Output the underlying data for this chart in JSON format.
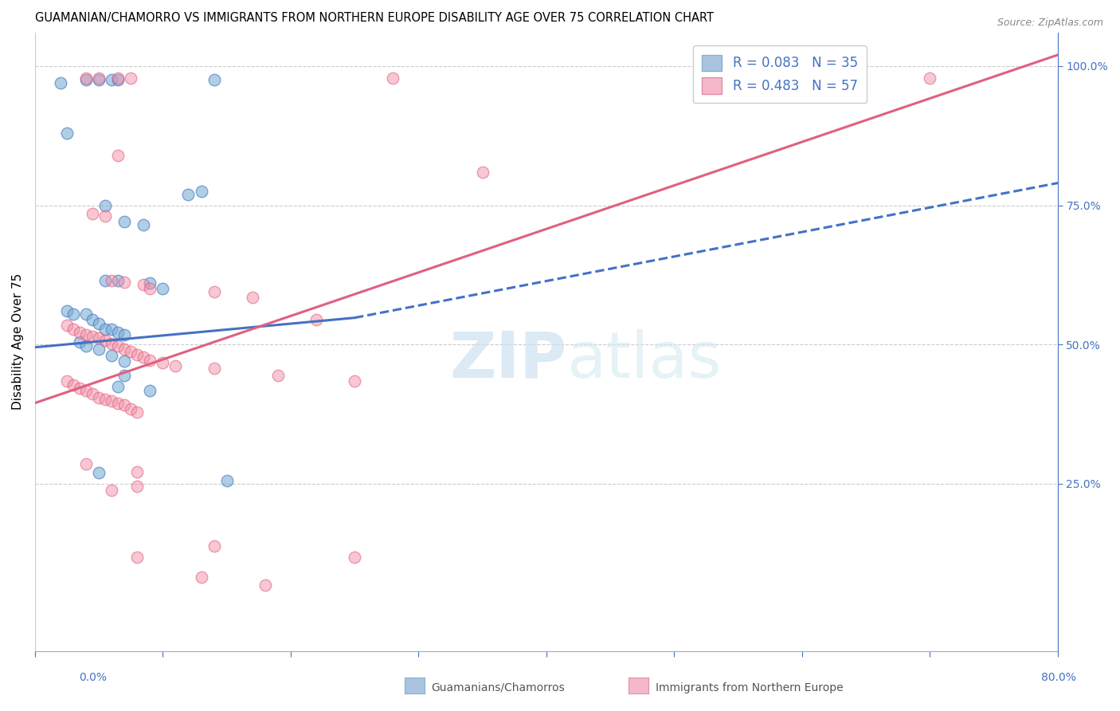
{
  "title": "GUAMANIAN/CHAMORRO VS IMMIGRANTS FROM NORTHERN EUROPE DISABILITY AGE OVER 75 CORRELATION CHART",
  "source": "Source: ZipAtlas.com",
  "ylabel": "Disability Age Over 75",
  "ytick_labels": [
    "100.0%",
    "75.0%",
    "50.0%",
    "25.0%"
  ],
  "ytick_values": [
    1.0,
    0.75,
    0.5,
    0.25
  ],
  "xlim": [
    0.0,
    0.8
  ],
  "ylim": [
    -0.05,
    1.06
  ],
  "legend_entries": [
    {
      "label": "R = 0.083   N = 35",
      "facecolor": "#aac4e0",
      "edgecolor": "#4472c4"
    },
    {
      "label": "R = 0.483   N = 57",
      "facecolor": "#f4b8c8",
      "edgecolor": "#e05080"
    }
  ],
  "legend_title_blue": "Guamanians/Chamorros",
  "legend_title_pink": "Immigrants from Northern Europe",
  "watermark_zip": "ZIP",
  "watermark_atlas": "atlas",
  "blue_scatter_color": "#7bafd4",
  "blue_scatter_edge": "#4472c4",
  "pink_scatter_color": "#f090a8",
  "pink_scatter_edge": "#e05070",
  "blue_line_color": "#4472c4",
  "pink_line_color": "#e06080",
  "grid_color": "#cccccc",
  "blue_points": [
    [
      0.02,
      0.97
    ],
    [
      0.04,
      0.975
    ],
    [
      0.05,
      0.975
    ],
    [
      0.06,
      0.975
    ],
    [
      0.065,
      0.975
    ],
    [
      0.14,
      0.975
    ],
    [
      0.025,
      0.88
    ],
    [
      0.12,
      0.77
    ],
    [
      0.13,
      0.775
    ],
    [
      0.055,
      0.75
    ],
    [
      0.07,
      0.72
    ],
    [
      0.085,
      0.715
    ],
    [
      0.055,
      0.615
    ],
    [
      0.065,
      0.615
    ],
    [
      0.09,
      0.61
    ],
    [
      0.1,
      0.6
    ],
    [
      0.025,
      0.56
    ],
    [
      0.03,
      0.555
    ],
    [
      0.04,
      0.555
    ],
    [
      0.045,
      0.545
    ],
    [
      0.05,
      0.538
    ],
    [
      0.055,
      0.528
    ],
    [
      0.06,
      0.528
    ],
    [
      0.065,
      0.522
    ],
    [
      0.07,
      0.518
    ],
    [
      0.035,
      0.505
    ],
    [
      0.04,
      0.498
    ],
    [
      0.05,
      0.492
    ],
    [
      0.06,
      0.48
    ],
    [
      0.07,
      0.47
    ],
    [
      0.07,
      0.445
    ],
    [
      0.065,
      0.425
    ],
    [
      0.09,
      0.418
    ],
    [
      0.05,
      0.27
    ],
    [
      0.15,
      0.255
    ]
  ],
  "pink_points": [
    [
      0.04,
      0.978
    ],
    [
      0.05,
      0.978
    ],
    [
      0.065,
      0.978
    ],
    [
      0.075,
      0.978
    ],
    [
      0.28,
      0.978
    ],
    [
      0.7,
      0.978
    ],
    [
      0.065,
      0.84
    ],
    [
      0.35,
      0.81
    ],
    [
      0.045,
      0.735
    ],
    [
      0.055,
      0.73
    ],
    [
      0.06,
      0.615
    ],
    [
      0.07,
      0.612
    ],
    [
      0.085,
      0.608
    ],
    [
      0.09,
      0.6
    ],
    [
      0.14,
      0.595
    ],
    [
      0.17,
      0.585
    ],
    [
      0.22,
      0.545
    ],
    [
      0.025,
      0.535
    ],
    [
      0.03,
      0.528
    ],
    [
      0.035,
      0.522
    ],
    [
      0.04,
      0.518
    ],
    [
      0.045,
      0.515
    ],
    [
      0.05,
      0.512
    ],
    [
      0.055,
      0.508
    ],
    [
      0.06,
      0.502
    ],
    [
      0.065,
      0.498
    ],
    [
      0.07,
      0.492
    ],
    [
      0.075,
      0.488
    ],
    [
      0.08,
      0.482
    ],
    [
      0.085,
      0.478
    ],
    [
      0.09,
      0.472
    ],
    [
      0.1,
      0.468
    ],
    [
      0.11,
      0.462
    ],
    [
      0.14,
      0.458
    ],
    [
      0.19,
      0.445
    ],
    [
      0.025,
      0.435
    ],
    [
      0.03,
      0.428
    ],
    [
      0.035,
      0.422
    ],
    [
      0.04,
      0.418
    ],
    [
      0.045,
      0.412
    ],
    [
      0.05,
      0.405
    ],
    [
      0.055,
      0.402
    ],
    [
      0.06,
      0.398
    ],
    [
      0.065,
      0.395
    ],
    [
      0.07,
      0.392
    ],
    [
      0.075,
      0.385
    ],
    [
      0.08,
      0.378
    ],
    [
      0.25,
      0.435
    ],
    [
      0.04,
      0.285
    ],
    [
      0.08,
      0.272
    ],
    [
      0.08,
      0.245
    ],
    [
      0.06,
      0.238
    ],
    [
      0.14,
      0.138
    ],
    [
      0.08,
      0.118
    ],
    [
      0.25,
      0.118
    ],
    [
      0.13,
      0.082
    ],
    [
      0.18,
      0.068
    ]
  ],
  "blue_solid_line": {
    "x": [
      0.0,
      0.25
    ],
    "y": [
      0.495,
      0.548
    ]
  },
  "blue_dashed_line": {
    "x": [
      0.25,
      0.8
    ],
    "y": [
      0.548,
      0.79
    ]
  },
  "pink_line": {
    "x": [
      0.0,
      0.8
    ],
    "y": [
      0.395,
      1.02
    ]
  }
}
